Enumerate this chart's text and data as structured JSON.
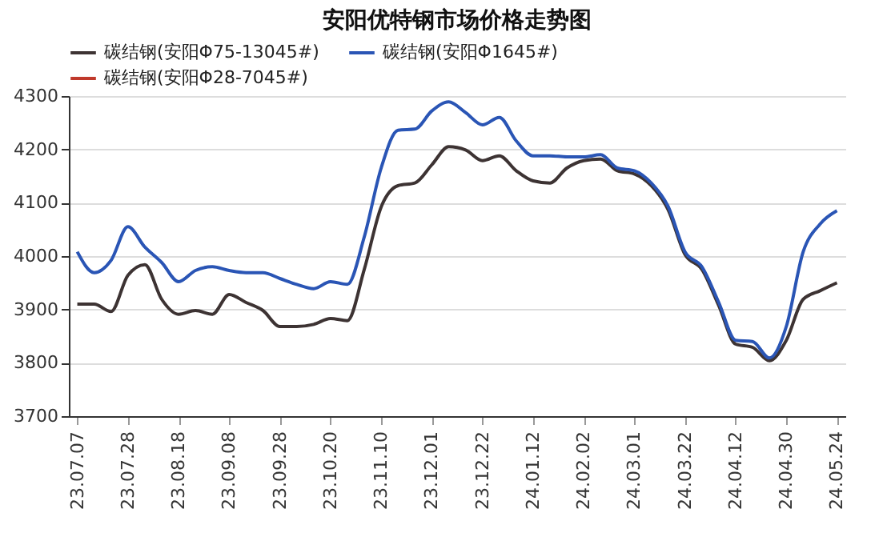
{
  "chart_data": {
    "type": "line",
    "title": "安阳优特钢市场价格走势图",
    "categories": [
      "23.07.07",
      null,
      null,
      "23.07.28",
      null,
      null,
      "23.08.18",
      null,
      null,
      "23.09.08",
      null,
      null,
      "23.09.28",
      null,
      null,
      "23.10.20",
      null,
      null,
      "23.11.10",
      null,
      null,
      "23.12.01",
      null,
      null,
      "23.12.22",
      null,
      null,
      "24.01.12",
      null,
      null,
      "24.02.02",
      null,
      null,
      "24.03.01",
      null,
      null,
      "24.03.22",
      null,
      null,
      "24.04.12",
      null,
      null,
      "24.04.30",
      null,
      null,
      "24.05.24"
    ],
    "series": [
      {
        "name": "碳结钢(安阳Φ75-13045#)",
        "color": "#3d3333",
        "values": [
          3910,
          3910,
          3896,
          3964,
          3984,
          3919,
          3891,
          3898,
          3891,
          3928,
          3913,
          3898,
          3868,
          3868,
          3872,
          3883,
          3879,
          3975,
          4092,
          4132,
          4137,
          4171,
          4205,
          4199,
          4179,
          4188,
          4160,
          4141,
          4137,
          4165,
          4179,
          4182,
          4160,
          4154,
          4132,
          4087,
          4003,
          3975,
          3907,
          3835,
          3829,
          3804,
          3842,
          3919,
          3935,
          3950
        ]
      },
      {
        "name": "碳结钢(安阳Φ1645#)",
        "color": "#2a55b5",
        "values": [
          4008,
          3969,
          3992,
          4055,
          4017,
          3988,
          3952,
          3973,
          3980,
          3973,
          3969,
          3969,
          3958,
          3947,
          3939,
          3952,
          3947,
          4036,
          4165,
          4236,
          4238,
          4272,
          4289,
          4269,
          4246,
          4260,
          4216,
          4188,
          4188,
          4186,
          4186,
          4190,
          4165,
          4160,
          4137,
          4093,
          4008,
          3980,
          3913,
          3842,
          3840,
          3809,
          3868,
          4008,
          4060,
          4085
        ]
      },
      {
        "name": "碳结钢(安阳Φ28-7045#)",
        "color": "#c0392b",
        "values": [
          null,
          null,
          null,
          null,
          null,
          null,
          null,
          null,
          null,
          null,
          null,
          null,
          null,
          null,
          null,
          null,
          null,
          null,
          null,
          null,
          null,
          null,
          null,
          null,
          null,
          null,
          null,
          null,
          null,
          null,
          null,
          null,
          null,
          null,
          null,
          null,
          null,
          null,
          null,
          null,
          null,
          null,
          null,
          null,
          null,
          null
        ]
      }
    ],
    "ylim": [
      3700,
      4300
    ],
    "yticks": [
      3700,
      3800,
      3900,
      4000,
      4100,
      4200,
      4300
    ],
    "grid": "y",
    "legend": "top",
    "line_style": "solid",
    "marker": "none"
  }
}
